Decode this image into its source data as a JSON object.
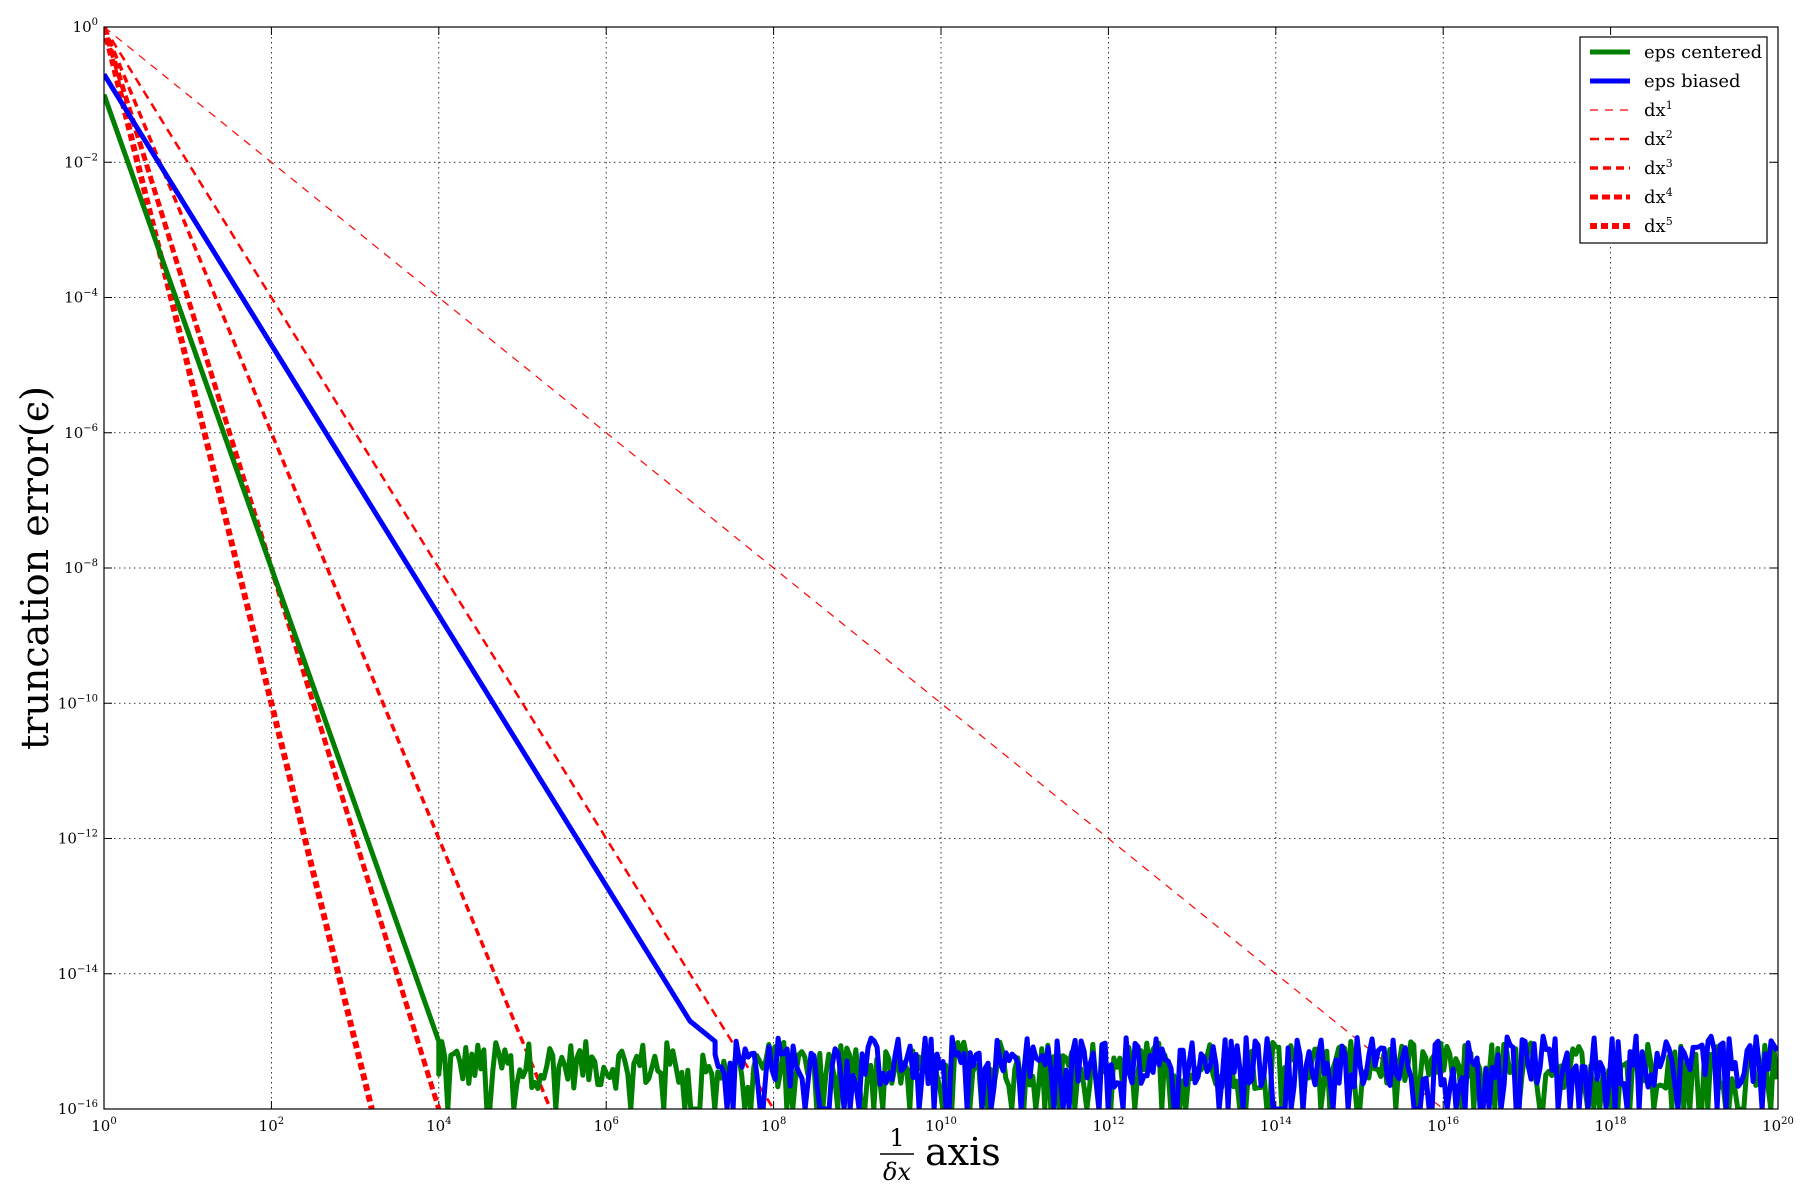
{
  "chart_data": {
    "type": "line",
    "xscale": "log",
    "yscale": "log",
    "xlim": [
      1,
      1e+20
    ],
    "ylim": [
      1e-16,
      1
    ],
    "grid": true,
    "legend_placement": "top-right",
    "xlabel": {
      "fraction_num": "1",
      "fraction_den": "δx",
      "suffix": "axis"
    },
    "ylabel": "truncation error(ϵ)",
    "x_ticks": [
      {
        "base": "10",
        "exp": "0",
        "value": 1
      },
      {
        "base": "10",
        "exp": "2",
        "value": 100.0
      },
      {
        "base": "10",
        "exp": "4",
        "value": 10000.0
      },
      {
        "base": "10",
        "exp": "6",
        "value": 1000000.0
      },
      {
        "base": "10",
        "exp": "8",
        "value": 100000000.0
      },
      {
        "base": "10",
        "exp": "10",
        "value": 10000000000.0
      },
      {
        "base": "10",
        "exp": "12",
        "value": 1000000000000.0
      },
      {
        "base": "10",
        "exp": "14",
        "value": 100000000000000.0
      },
      {
        "base": "10",
        "exp": "16",
        "value": 1e+16
      },
      {
        "base": "10",
        "exp": "18",
        "value": 1e+18
      },
      {
        "base": "10",
        "exp": "20",
        "value": 1e+20
      }
    ],
    "y_ticks": [
      {
        "base": "10",
        "exp": "0",
        "value": 1
      },
      {
        "base": "10",
        "exp": "−2",
        "value": 0.01
      },
      {
        "base": "10",
        "exp": "−4",
        "value": 0.0001
      },
      {
        "base": "10",
        "exp": "−6",
        "value": 1e-06
      },
      {
        "base": "10",
        "exp": "−8",
        "value": 1e-08
      },
      {
        "base": "10",
        "exp": "−10",
        "value": 1e-10
      },
      {
        "base": "10",
        "exp": "−12",
        "value": 1e-12
      },
      {
        "base": "10",
        "exp": "−14",
        "value": 1e-14
      },
      {
        "base": "10",
        "exp": "−16",
        "value": 1e-16
      }
    ],
    "series": [
      {
        "name": "eps centered",
        "color": "#007f00",
        "style": "solid",
        "legend_base": "eps centered",
        "legend_sup": "",
        "points": [
          [
            1,
            0.1
          ],
          [
            10000.0,
            1e-15
          ]
        ],
        "noise_floor": {
          "x_from": 10000.0,
          "x_to": 1e+20,
          "y_min": 1e-16,
          "y_max": 1e-15
        }
      },
      {
        "name": "eps biased",
        "color": "#0000ff",
        "style": "solid",
        "legend_base": "eps biased",
        "legend_sup": "",
        "points": [
          [
            1,
            0.2
          ],
          [
            10000000.0,
            2e-15
          ],
          [
            20000000.0,
            1e-15
          ]
        ],
        "noise_floor": {
          "x_from": 20000000.0,
          "x_to": 1e+20,
          "y_min": 1e-16,
          "y_max": 1.2e-15
        }
      },
      {
        "name": "dx1",
        "color": "#ff0000",
        "style": "dash",
        "legend_base": "dx",
        "legend_sup": "1",
        "points": [
          [
            1,
            1
          ],
          [
            1e+16,
            1e-16
          ]
        ]
      },
      {
        "name": "dx2",
        "color": "#ff0000",
        "style": "dash",
        "legend_base": "dx",
        "legend_sup": "2",
        "points": [
          [
            1,
            1
          ],
          [
            100000000.0,
            1e-16
          ]
        ]
      },
      {
        "name": "dx3",
        "color": "#ff0000",
        "style": "dash",
        "legend_base": "dx",
        "legend_sup": "3",
        "points": [
          [
            1,
            1
          ],
          [
            215443,
            1e-16
          ]
        ]
      },
      {
        "name": "dx4",
        "color": "#ff0000",
        "style": "dash",
        "legend_base": "dx",
        "legend_sup": "4",
        "points": [
          [
            1,
            1
          ],
          [
            10000,
            1e-16
          ]
        ]
      },
      {
        "name": "dx5",
        "color": "#ff0000",
        "style": "dash",
        "legend_base": "dx",
        "legend_sup": "5",
        "points": [
          [
            1,
            1
          ],
          [
            1585,
            1e-16
          ]
        ]
      }
    ]
  }
}
